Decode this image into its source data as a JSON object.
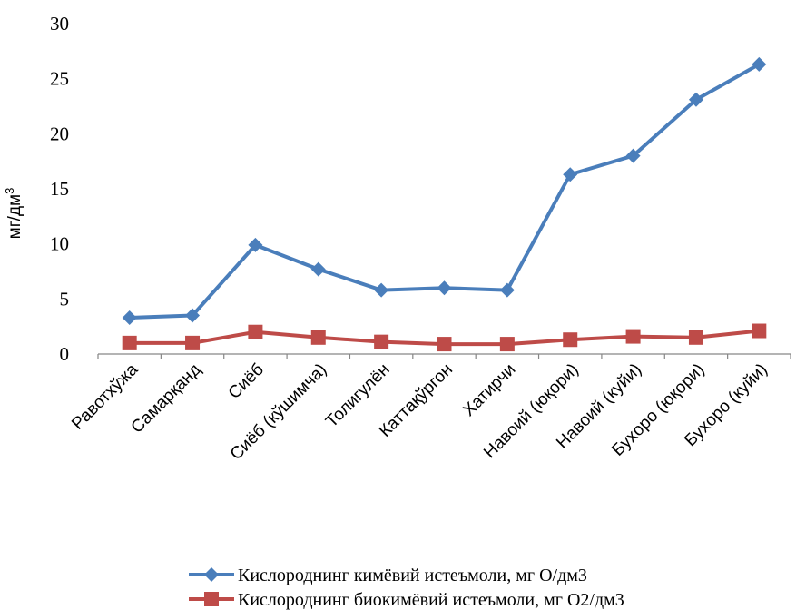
{
  "chart_data": {
    "type": "line",
    "categories": [
      "Равотхўжа",
      "Самарқанд",
      "Сиёб",
      "Сиёб (кўшимча)",
      "Толигулён",
      "Каттақўргон",
      "Хатирчи",
      "Навоий (юқори)",
      "Навоий (куйи)",
      "Бухоро (юқори)",
      "Бухоро (куйи)"
    ],
    "series": [
      {
        "name": "Кислороднинг кимёвий истеъмоли, мг О/дм3",
        "color": "#4a7ebb",
        "marker": "diamond",
        "values": [
          3.3,
          3.5,
          9.9,
          7.7,
          5.8,
          6.0,
          5.8,
          16.3,
          18.0,
          23.1,
          26.3
        ]
      },
      {
        "name": "Кислороднинг биокимёвий истеъмоли, мг О2/дм3",
        "color": "#be4b48",
        "marker": "square",
        "values": [
          1.0,
          1.0,
          2.0,
          1.5,
          1.1,
          0.9,
          0.9,
          1.3,
          1.6,
          1.5,
          2.1
        ]
      }
    ],
    "ylabel": "мг/дм",
    "ylabel_sup": "3",
    "ylim": [
      0,
      30
    ],
    "yticks": [
      0,
      5,
      10,
      15,
      20,
      25,
      30
    ],
    "grid": false,
    "legend_position": "bottom"
  }
}
